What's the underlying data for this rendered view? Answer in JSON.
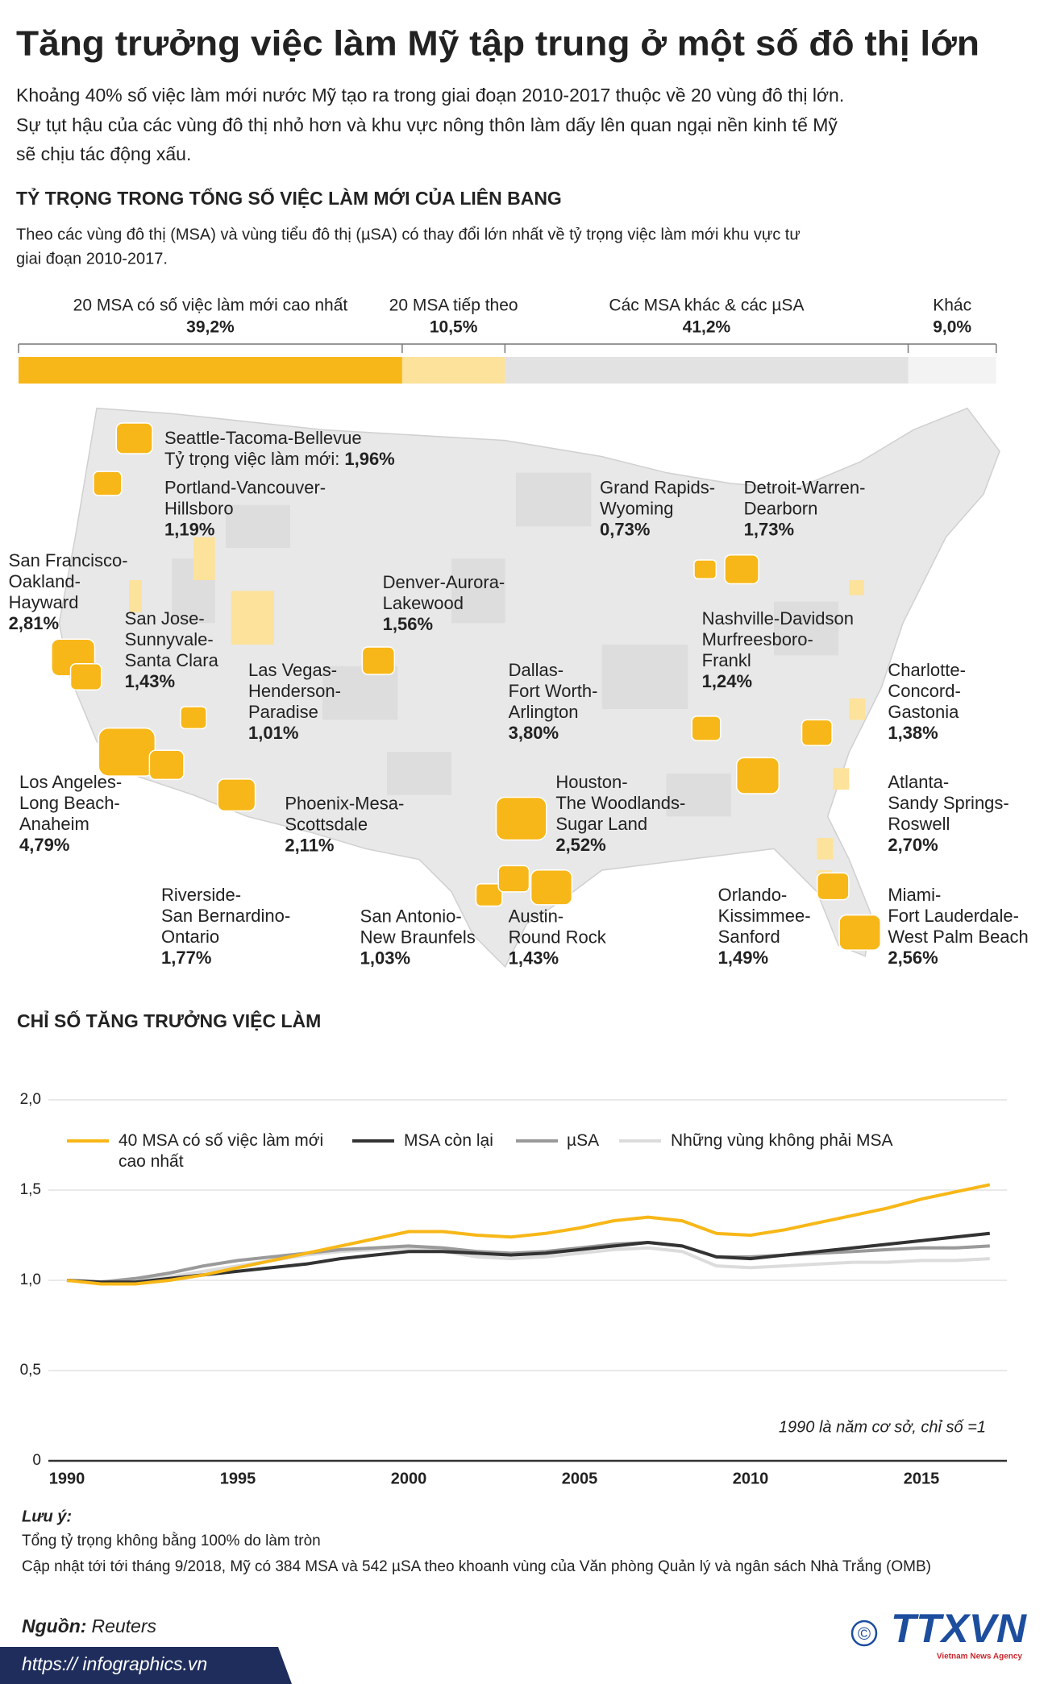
{
  "header": {
    "title": "Tăng trưởng việc làm Mỹ tập trung ở một số đô thị lớn",
    "intro": [
      "Khoảng 40% số việc làm mới nước Mỹ tạo ra trong giai đoạn 2010-2017 thuộc về 20 vùng đô thị lớn.",
      "Sự tụt hậu của các vùng đô thị nhỏ hơn và khu vực nông thôn làm dấy lên quan ngại nền kinh tế Mỹ",
      "sẽ chịu tác động xấu."
    ]
  },
  "chart_data": [
    {
      "type": "stacked_bar",
      "title": "TỶ TRỌNG TRONG TỔNG SỐ VIỆC LÀM MỚI CỦA LIÊN BANG",
      "subtitle": [
        "Theo các vùng đô thị (MSA) và vùng tiểu đô thị (µSA) có thay đổi lớn nhất về tỷ trọng việc làm mới khu vực tư",
        "giai đoạn 2010-2017."
      ],
      "xlim": [
        0,
        100
      ],
      "series": [
        {
          "name": "20 MSA có số việc làm mới cao nhất",
          "color": "#f7b718",
          "values": [
            39.2
          ],
          "value_labels": [
            "39,2%"
          ]
        },
        {
          "name": "20 MSA tiếp theo",
          "color": "#fde29b",
          "values": [
            10.5
          ],
          "value_labels": [
            "10,5%"
          ]
        },
        {
          "name": "Các MSA khác & các µSA",
          "color": "#e2e2e2",
          "values": [
            41.2
          ],
          "value_labels": [
            "41,2%"
          ]
        },
        {
          "name": "Khác",
          "color": "#f3f3f3",
          "values": [
            9.0
          ],
          "value_labels": [
            "9,0%"
          ]
        }
      ]
    },
    {
      "type": "line",
      "title": "CHỈ SỐ TĂNG TRƯỞNG VIỆC LÀM",
      "annotation": "1990 là năm cơ sở, chỉ số =1",
      "x": [
        1990,
        1991,
        1992,
        1993,
        1994,
        1995,
        1996,
        1997,
        1998,
        1999,
        2000,
        2001,
        2002,
        2003,
        2004,
        2005,
        2006,
        2007,
        2008,
        2009,
        2010,
        2011,
        2012,
        2013,
        2014,
        2015,
        2016,
        2017
      ],
      "xlim": [
        1990,
        2017.5
      ],
      "xticks": [
        1990,
        1995,
        2000,
        2005,
        2010,
        2015
      ],
      "ylim": [
        0,
        2
      ],
      "yticks": [
        0,
        {
          "value": 0.5,
          "label": "0,5"
        },
        {
          "value": 1,
          "label": "1,0"
        },
        {
          "value": 1.5,
          "label": "1,5"
        },
        {
          "value": 2,
          "label": "2,0"
        }
      ],
      "grid": true,
      "series": [
        {
          "name": "40 MSA có số việc làm mới cao nhất",
          "color": "#f7b718",
          "values": [
            1.0,
            0.98,
            0.98,
            1.0,
            1.03,
            1.07,
            1.11,
            1.15,
            1.19,
            1.23,
            1.27,
            1.27,
            1.25,
            1.24,
            1.26,
            1.29,
            1.33,
            1.35,
            1.33,
            1.26,
            1.25,
            1.28,
            1.32,
            1.36,
            1.4,
            1.45,
            1.49,
            1.53
          ]
        },
        {
          "name": "MSA còn lại",
          "color": "#333333",
          "values": [
            1.0,
            0.99,
            0.99,
            1.01,
            1.03,
            1.05,
            1.07,
            1.09,
            1.12,
            1.14,
            1.16,
            1.16,
            1.15,
            1.14,
            1.15,
            1.17,
            1.19,
            1.21,
            1.19,
            1.13,
            1.12,
            1.14,
            1.16,
            1.18,
            1.2,
            1.22,
            1.24,
            1.26
          ]
        },
        {
          "name": "µSA",
          "color": "#9a9a9a",
          "values": [
            1.0,
            0.99,
            1.01,
            1.04,
            1.08,
            1.11,
            1.13,
            1.15,
            1.17,
            1.18,
            1.19,
            1.18,
            1.16,
            1.15,
            1.16,
            1.18,
            1.2,
            1.21,
            1.19,
            1.13,
            1.13,
            1.14,
            1.15,
            1.16,
            1.17,
            1.18,
            1.18,
            1.19
          ]
        },
        {
          "name": "Những vùng không phải MSA",
          "color": "#dcdcdc",
          "values": [
            1.0,
            0.99,
            1.0,
            1.02,
            1.05,
            1.08,
            1.11,
            1.14,
            1.16,
            1.17,
            1.18,
            1.16,
            1.13,
            1.12,
            1.13,
            1.15,
            1.17,
            1.18,
            1.16,
            1.08,
            1.07,
            1.08,
            1.09,
            1.1,
            1.1,
            1.11,
            1.11,
            1.12
          ]
        }
      ]
    }
  ],
  "map": {
    "share_label": "Tỷ trọng việc làm mới:",
    "msas": [
      {
        "name": [
          "Seattle-Tacoma-Bellevue"
        ],
        "value": 1.96,
        "value_label": "1,96%"
      },
      {
        "name": [
          "Portland-Vancouver-",
          "Hillsboro"
        ],
        "value": 1.19,
        "value_label": "1,19%"
      },
      {
        "name": [
          "San Francisco-",
          "Oakland-",
          "Hayward"
        ],
        "value": 2.81,
        "value_label": "2,81%"
      },
      {
        "name": [
          "San Jose-",
          "Sunnyvale-",
          "Santa Clara"
        ],
        "value": 1.43,
        "value_label": "1,43%"
      },
      {
        "name": [
          "Las Vegas-",
          "Henderson-",
          "Paradise"
        ],
        "value": 1.01,
        "value_label": "1,01%"
      },
      {
        "name": [
          "Los Angeles-",
          "Long Beach-",
          "Anaheim"
        ],
        "value": 4.79,
        "value_label": "4,79%"
      },
      {
        "name": [
          "Riverside-",
          "San Bernardino-",
          "Ontario"
        ],
        "value": 1.77,
        "value_label": "1,77%"
      },
      {
        "name": [
          "Phoenix-Mesa-",
          "Scottsdale"
        ],
        "value": 2.11,
        "value_label": "2,11%"
      },
      {
        "name": [
          "Denver-Aurora-",
          "Lakewood"
        ],
        "value": 1.56,
        "value_label": "1,56%"
      },
      {
        "name": [
          "Grand Rapids-",
          "Wyoming"
        ],
        "value": 0.73,
        "value_label": "0,73%"
      },
      {
        "name": [
          "Detroit-Warren-",
          "Dearborn"
        ],
        "value": 1.73,
        "value_label": "1,73%"
      },
      {
        "name": [
          "Nashville-Davidson",
          "Murfreesboro-",
          "Frankl"
        ],
        "value": 1.24,
        "value_label": "1,24%"
      },
      {
        "name": [
          "Charlotte-",
          "Concord-",
          "Gastonia"
        ],
        "value": 1.38,
        "value_label": "1,38%"
      },
      {
        "name": [
          "Dallas-",
          "Fort Worth-",
          "Arlington"
        ],
        "value": 3.8,
        "value_label": "3,80%"
      },
      {
        "name": [
          "Houston-",
          "The Woodlands-",
          "Sugar Land"
        ],
        "value": 2.52,
        "value_label": "2,52%"
      },
      {
        "name": [
          "Atlanta-",
          "Sandy Springs-",
          "Roswell"
        ],
        "value": 2.7,
        "value_label": "2,70%"
      },
      {
        "name": [
          "San Antonio-",
          "New Braunfels"
        ],
        "value": 1.03,
        "value_label": "1,03%"
      },
      {
        "name": [
          "Austin-",
          "Round Rock"
        ],
        "value": 1.43,
        "value_label": "1,43%"
      },
      {
        "name": [
          "Orlando-",
          "Kissimmee-",
          "Sanford"
        ],
        "value": 1.49,
        "value_label": "1,49%"
      },
      {
        "name": [
          "Miami-",
          "Fort Lauderdale-",
          "West Palm Beach"
        ],
        "value": 2.56,
        "value_label": "2,56%"
      }
    ]
  },
  "notes": {
    "title": "Lưu ý:",
    "lines": [
      "Tổng tỷ trọng không bằng 100% do làm tròn",
      "Cập nhật tới tới tháng 9/2018, Mỹ có 384 MSA và 542 µSA theo khoanh vùng của Văn phòng Quản lý và ngân sách Nhà Trắng (OMB)"
    ]
  },
  "footer": {
    "source_label": "Nguồn:",
    "source": "Reuters",
    "url": "https:// infographics.vn",
    "copyright": "©",
    "logo": "TTXVN",
    "logo_sub": "Vietnam News Agency"
  }
}
